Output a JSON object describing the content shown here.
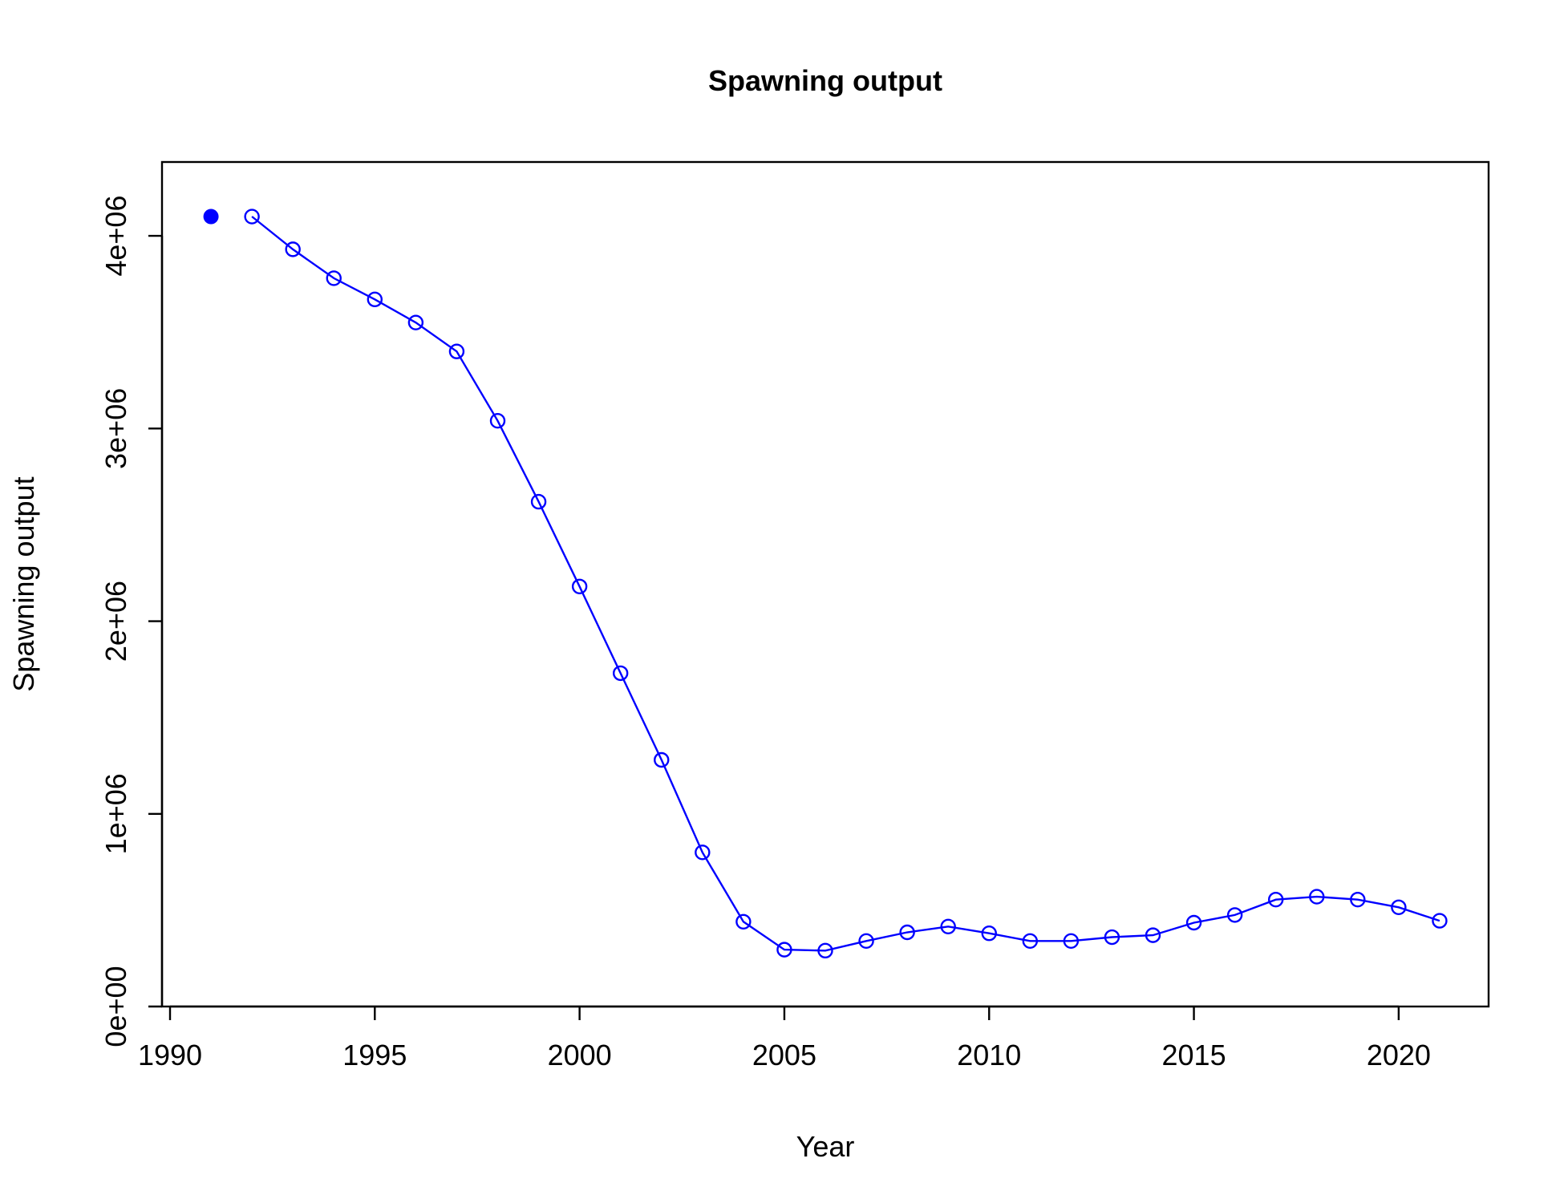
{
  "chart_data": {
    "type": "line",
    "title": "Spawning output",
    "xlabel": "Year",
    "ylabel": "Spawning output",
    "xlim": [
      1990,
      2022
    ],
    "ylim": [
      0,
      4300000
    ],
    "x_ticks": [
      1990,
      1995,
      2000,
      2005,
      2010,
      2015,
      2020
    ],
    "y_ticks": [
      0,
      1000000,
      2000000,
      3000000,
      4000000
    ],
    "y_tick_labels": [
      "0e+00",
      "1e+06",
      "2e+06",
      "3e+06",
      "4e+06"
    ],
    "grid": false,
    "legend": "none",
    "color": "#0000ff",
    "virgin_point": {
      "x": 1991,
      "y": 4100000
    },
    "series": [
      {
        "x": [
          1992,
          1993,
          1994,
          1995,
          1996,
          1997,
          1998,
          1999,
          2000,
          2001,
          2002,
          2003,
          2004,
          2005,
          2006,
          2007,
          2008,
          2009,
          2010,
          2011,
          2012,
          2013,
          2014,
          2015,
          2016,
          2017,
          2018,
          2019,
          2020,
          2021
        ],
        "values": [
          4100000,
          3930000,
          3780000,
          3670000,
          3550000,
          3400000,
          3040000,
          2620000,
          2180000,
          1730000,
          1280000,
          800000,
          440000,
          295000,
          290000,
          340000,
          385000,
          415000,
          380000,
          340000,
          340000,
          360000,
          370000,
          435000,
          475000,
          555000,
          570000,
          555000,
          515000,
          445000
        ]
      }
    ]
  }
}
